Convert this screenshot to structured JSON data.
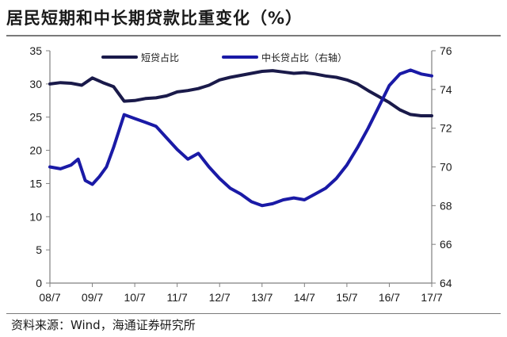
{
  "title": "居民短期和中长期贷款比重变化（%）",
  "source": "资料来源：Wind，海通证券研究所",
  "colors": {
    "series_short": "#1a1a4a",
    "series_long": "#1a1aa6",
    "axis": "#808080"
  },
  "chart_data": {
    "type": "line",
    "title": "居民短期和中长期贷款比重变化（%）",
    "x_tick_labels": [
      "08/7",
      "09/7",
      "10/7",
      "11/7",
      "12/7",
      "13/7",
      "14/7",
      "15/7",
      "16/7",
      "17/7"
    ],
    "x_range": [
      "2008-07",
      "2017-07"
    ],
    "y_left": {
      "ticks": [
        "0",
        "5",
        "10",
        "15",
        "20",
        "25",
        "30",
        "35"
      ],
      "ylim": [
        0,
        35
      ]
    },
    "y_right": {
      "ticks": [
        "64",
        "66",
        "68",
        "70",
        "72",
        "74",
        "76"
      ],
      "ylim": [
        64,
        76
      ]
    },
    "legend_placement": "top",
    "grid": false,
    "series": [
      {
        "name": "短贷占比",
        "axis": "left",
        "x": [
          "2008-07",
          "2008-10",
          "2009-01",
          "2009-04",
          "2009-07",
          "2009-10",
          "2010-01",
          "2010-04",
          "2010-07",
          "2010-10",
          "2011-01",
          "2011-04",
          "2011-07",
          "2011-10",
          "2012-01",
          "2012-04",
          "2012-07",
          "2012-10",
          "2013-01",
          "2013-04",
          "2013-07",
          "2013-10",
          "2014-01",
          "2014-04",
          "2014-07",
          "2014-10",
          "2015-01",
          "2015-04",
          "2015-07",
          "2015-10",
          "2016-01",
          "2016-04",
          "2016-07",
          "2016-10",
          "2017-01",
          "2017-04",
          "2017-07"
        ],
        "values": [
          30.0,
          30.2,
          30.1,
          29.8,
          30.9,
          30.2,
          29.6,
          27.4,
          27.5,
          27.8,
          27.9,
          28.2,
          28.8,
          29.0,
          29.3,
          29.8,
          30.6,
          31.0,
          31.3,
          31.6,
          31.9,
          32.0,
          31.8,
          31.6,
          31.7,
          31.5,
          31.2,
          31.0,
          30.6,
          30.0,
          29.0,
          28.1,
          27.2,
          26.1,
          25.4,
          25.2,
          25.2
        ]
      },
      {
        "name": "中长贷占比（右轴）",
        "axis": "right",
        "x": [
          "2008-07",
          "2008-10",
          "2009-01",
          "2009-03",
          "2009-05",
          "2009-07",
          "2009-09",
          "2009-11",
          "2010-01",
          "2010-04",
          "2010-07",
          "2010-10",
          "2011-01",
          "2011-04",
          "2011-07",
          "2011-10",
          "2012-01",
          "2012-04",
          "2012-07",
          "2012-10",
          "2013-01",
          "2013-04",
          "2013-07",
          "2013-10",
          "2014-01",
          "2014-04",
          "2014-07",
          "2014-10",
          "2015-01",
          "2015-04",
          "2015-07",
          "2015-10",
          "2016-01",
          "2016-04",
          "2016-07",
          "2016-10",
          "2017-01",
          "2017-04",
          "2017-07"
        ],
        "values": [
          70.0,
          69.9,
          70.1,
          70.4,
          69.3,
          69.1,
          69.5,
          70.0,
          71.0,
          72.7,
          72.5,
          72.3,
          72.1,
          71.5,
          70.9,
          70.4,
          70.7,
          70.0,
          69.4,
          68.9,
          68.6,
          68.2,
          68.0,
          68.1,
          68.3,
          68.4,
          68.3,
          68.6,
          68.9,
          69.4,
          70.1,
          71.0,
          72.0,
          73.1,
          74.2,
          74.8,
          75.0,
          74.8,
          74.7
        ]
      }
    ]
  }
}
